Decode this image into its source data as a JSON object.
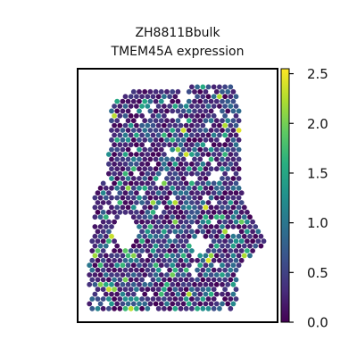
{
  "chart_data": {
    "type": "scatter",
    "title": "ZH8811Bbulk",
    "subtitle": "TMEM45A expression",
    "xlabel": "",
    "ylabel": "",
    "colormap": "viridis",
    "colorbar": {
      "min": 0.0,
      "max": 2.55,
      "ticks": [
        "0.0",
        "0.5",
        "1.0",
        "1.5",
        "2.0",
        "2.5"
      ],
      "tick_values": [
        0.0,
        0.5,
        1.0,
        1.5,
        2.0,
        2.5
      ]
    },
    "grid": false,
    "legend": "colorbar-right",
    "spot_value_distribution": {
      "mostly_low": "0.0-0.5",
      "occasional_mid": "0.8-1.6",
      "rare_high": "2.0-2.5"
    }
  }
}
